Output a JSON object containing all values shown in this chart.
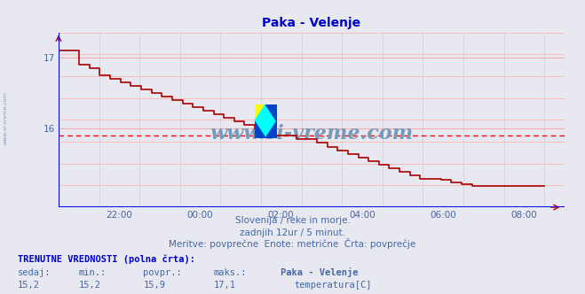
{
  "title": "Paka - Velenje",
  "title_color": "#0000cc",
  "bg_color": "#e8e8f0",
  "plot_bg_color": "#e8e8f0",
  "grid_color_h": "#ffaaaa",
  "grid_color_v": "#ccccdd",
  "line_color": "#aa0000",
  "hline_color": "#ff0000",
  "hline_value": 15.9,
  "xlim": [
    20.5,
    33.0
  ],
  "ylim": [
    14.9,
    17.35
  ],
  "yticks": [
    16,
    17
  ],
  "xtick_labels": [
    "22:00",
    "00:00",
    "02:00",
    "04:00",
    "06:00",
    "08:00"
  ],
  "xtick_positions": [
    22,
    24,
    26,
    28,
    30,
    32
  ],
  "bottom_text1": "Slovenija / reke in morje.",
  "bottom_text2": "zadnjih 12ur / 5 minut.",
  "bottom_text3": "Meritve: povprečne  Enote: metrične  Črta: povprečje",
  "footer_color": "#5577aa",
  "text_color": "#4466aa",
  "label_TRENUTNE": "TRENUTNE VREDNOSTI (polna črta):",
  "label_sedaj": "sedaj:",
  "label_min": "min.:",
  "label_povpr": "povpr.:",
  "label_maks": "maks.:",
  "val_sedaj": "15,2",
  "val_min": "15,2",
  "val_povpr": "15,9",
  "val_maks": "17,1",
  "legend_name": "Paka - Velenje",
  "legend_series": "temperatura[C]",
  "legend_color": "#cc0000",
  "watermark_text": "www.si-vreme.com",
  "watermark_color": "#7799bb",
  "sidebar_text": "www.si-vreme.com",
  "sidebar_color": "#7799bb",
  "temperature_data": [
    17.1,
    17.1,
    16.9,
    16.85,
    16.75,
    16.7,
    16.65,
    16.6,
    16.55,
    16.5,
    16.45,
    16.4,
    16.35,
    16.3,
    16.25,
    16.2,
    16.15,
    16.1,
    16.05,
    16.0,
    15.95,
    15.9,
    15.9,
    15.85,
    15.85,
    15.8,
    15.75,
    15.7,
    15.65,
    15.6,
    15.55,
    15.5,
    15.45,
    15.4,
    15.35,
    15.3,
    15.3,
    15.28,
    15.25,
    15.22,
    15.2,
    15.2,
    15.2,
    15.2,
    15.2,
    15.2,
    15.2,
    15.2
  ],
  "num_vgrid": 12,
  "num_hgrid": 8
}
